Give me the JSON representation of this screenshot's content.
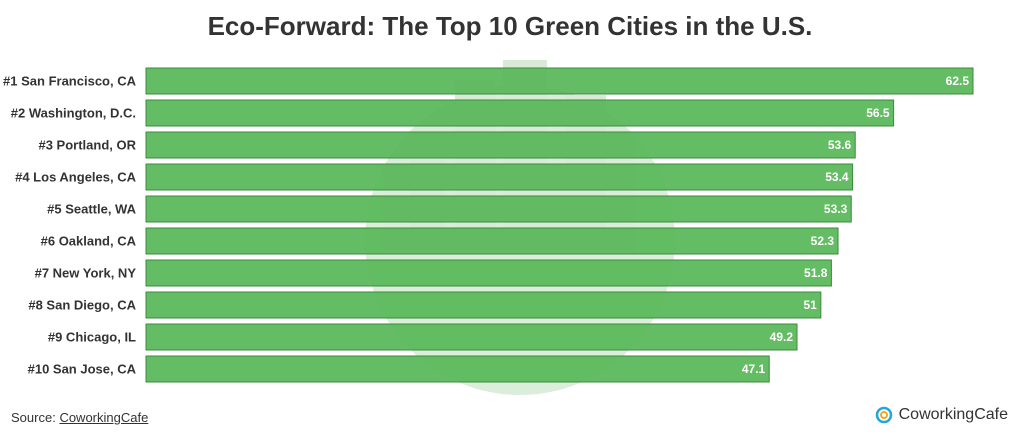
{
  "chart_data": {
    "type": "bar",
    "orientation": "horizontal",
    "title": "Eco-Forward: The Top 10 Green Cities in the U.S.",
    "categories": [
      "#1 San Francisco, CA",
      "#2 Washington, D.C.",
      "#3 Portland, OR",
      "#4 Los Angeles, CA",
      "#5 Seattle, WA",
      "#6 Oakland, CA",
      "#7 New York, NY",
      "#8 San Diego, CA",
      "#9 Chicago, IL",
      "#10 San Jose, CA"
    ],
    "values": [
      62.5,
      56.5,
      53.6,
      53.4,
      53.3,
      52.3,
      51.8,
      51,
      49.2,
      47.1
    ],
    "color": "#5cb85c"
  },
  "footer": {
    "source_label": "Source:",
    "source": "CoworkingCafe",
    "brand": "CoworkingCafe"
  }
}
